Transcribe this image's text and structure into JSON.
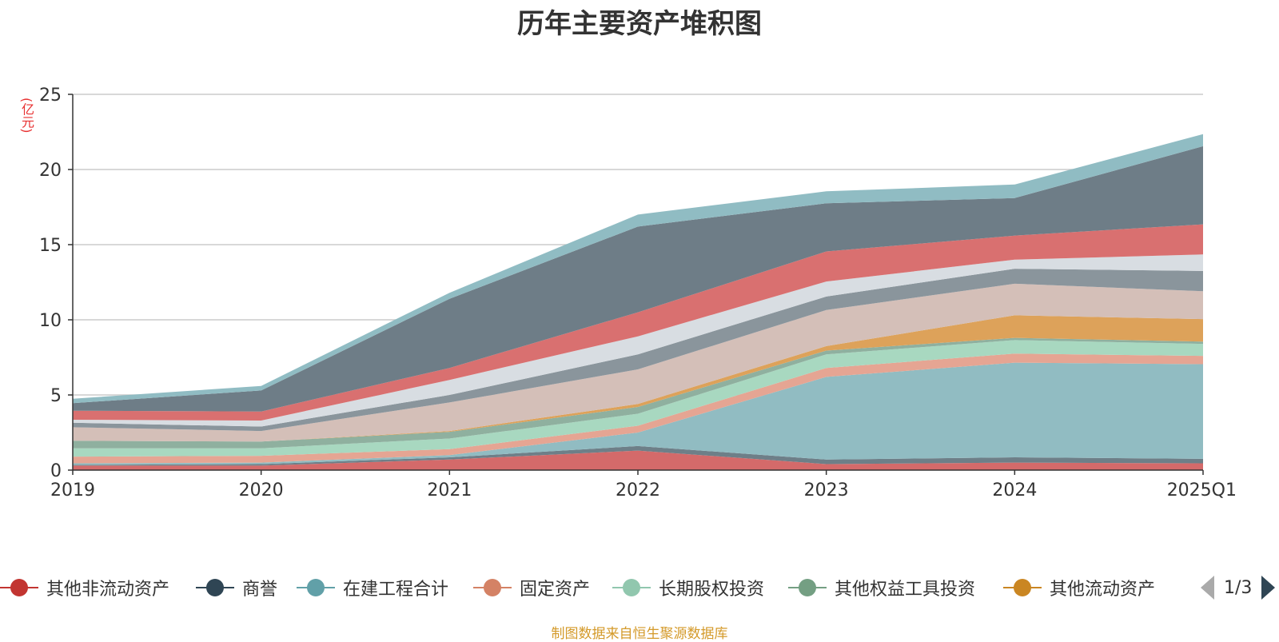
{
  "chart_data": {
    "type": "area",
    "title": "历年主要资产堆积图",
    "unit": "(亿元)",
    "categories": [
      "2019",
      "2020",
      "2021",
      "2022",
      "2023",
      "2024",
      "2025Q1"
    ],
    "ylim": [
      0,
      25
    ],
    "yticks": [
      0,
      5,
      10,
      15,
      20,
      25
    ],
    "grid": true,
    "stacked": true,
    "legend_position": "bottom",
    "series": [
      {
        "name": "",
        "color": "#d46a6a",
        "values": [
          0.3,
          0.3,
          0.7,
          1.3,
          0.4,
          0.5,
          0.45
        ]
      },
      {
        "name": "",
        "color": "#6e7f88",
        "values": [
          0.05,
          0.1,
          0.15,
          0.3,
          0.3,
          0.35,
          0.3
        ]
      },
      {
        "name": "",
        "color": "#91bcc2",
        "values": [
          0.1,
          0.1,
          0.15,
          0.9,
          5.5,
          6.3,
          6.3
        ]
      },
      {
        "name": "",
        "color": "#e5a593",
        "values": [
          0.45,
          0.45,
          0.4,
          0.45,
          0.6,
          0.6,
          0.55
        ]
      },
      {
        "name": "",
        "color": "#a8d8c0",
        "values": [
          0.55,
          0.5,
          0.7,
          0.8,
          0.9,
          0.9,
          0.8
        ]
      },
      {
        "name": "",
        "color": "#8fb09f",
        "values": [
          0.5,
          0.45,
          0.45,
          0.45,
          0.25,
          0.15,
          0.15
        ]
      },
      {
        "name": "",
        "color": "#dda25a",
        "values": [
          0.0,
          0.0,
          0.05,
          0.2,
          0.3,
          1.5,
          1.5
        ]
      },
      {
        "name": "",
        "color": "#d4bfb8",
        "values": [
          0.9,
          0.7,
          1.9,
          2.3,
          2.4,
          2.1,
          1.85
        ]
      },
      {
        "name": "",
        "color": "#8a959c",
        "values": [
          0.3,
          0.3,
          0.5,
          1.0,
          0.9,
          1.0,
          1.35
        ]
      },
      {
        "name": "",
        "color": "#d8dde2",
        "values": [
          0.2,
          0.4,
          1.0,
          1.2,
          1.0,
          0.6,
          1.1
        ]
      },
      {
        "name": "",
        "color": "#d97070",
        "values": [
          0.6,
          0.6,
          0.8,
          1.6,
          2.0,
          1.6,
          2.0
        ]
      },
      {
        "name": "",
        "color": "#6e7d87",
        "values": [
          0.5,
          1.4,
          4.6,
          5.7,
          3.2,
          2.5,
          5.2
        ]
      },
      {
        "name": "",
        "color": "#90bcc3",
        "values": [
          0.3,
          0.3,
          0.4,
          0.8,
          0.8,
          0.9,
          0.8
        ]
      }
    ]
  },
  "legend": {
    "items": [
      {
        "label": "其他非流动资产",
        "color": "#c23531"
      },
      {
        "label": "商誉",
        "color": "#2f4554"
      },
      {
        "label": "在建工程合计",
        "color": "#61a0a8"
      },
      {
        "label": "固定资产",
        "color": "#d48265"
      },
      {
        "label": "长期股权投资",
        "color": "#91c7ae"
      },
      {
        "label": "其他权益工具投资",
        "color": "#749f83"
      },
      {
        "label": "其他流动资产",
        "color": "#ca8622"
      }
    ],
    "page": "1/3"
  },
  "source": "制图数据来自恒生聚源数据库"
}
